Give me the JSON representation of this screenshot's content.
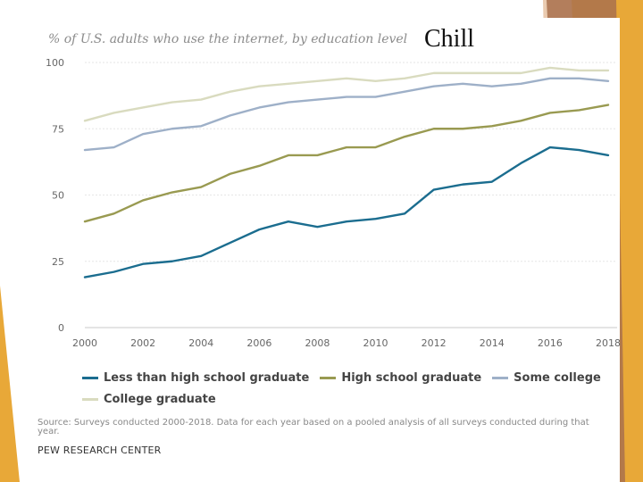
{
  "slide": {
    "subtitle": "% of U.S. adults who use the internet, by education level",
    "handwritten_note": "Chill",
    "source": "Source: Surveys conducted 2000-2018. Data for each year based on a pooled analysis of all surveys conducted during that year.",
    "credit": "PEW RESEARCH CENTER",
    "accent_colors": {
      "gold": "#e8a838",
      "brown": "#a9714e"
    }
  },
  "chart_data": {
    "type": "line",
    "title": "",
    "subtitle": "% of U.S. adults who use the internet, by education level",
    "xlabel": "",
    "ylabel": "",
    "x": [
      2000,
      2001,
      2002,
      2003,
      2004,
      2005,
      2006,
      2007,
      2008,
      2009,
      2010,
      2011,
      2012,
      2013,
      2014,
      2015,
      2016,
      2017,
      2018
    ],
    "xticks": [
      "2000",
      "2002",
      "2004",
      "2006",
      "2008",
      "2010",
      "2012",
      "2014",
      "2016",
      "2018"
    ],
    "yticks": [
      "0",
      "25",
      "50",
      "75",
      "100"
    ],
    "ylim": [
      0,
      100
    ],
    "grid": true,
    "legend": "bottom",
    "series": [
      {
        "name": "Less than high school graduate",
        "color": "#1b6d8f",
        "values": [
          19,
          21,
          24,
          25,
          27,
          32,
          37,
          40,
          38,
          40,
          41,
          43,
          52,
          54,
          55,
          62,
          68,
          67,
          65
        ]
      },
      {
        "name": "High school graduate",
        "color": "#999a51",
        "values": [
          40,
          43,
          48,
          51,
          53,
          58,
          61,
          65,
          65,
          68,
          68,
          72,
          75,
          75,
          76,
          78,
          81,
          82,
          84
        ]
      },
      {
        "name": "Some college",
        "color": "#9eb0c8",
        "values": [
          67,
          68,
          73,
          75,
          76,
          80,
          83,
          85,
          86,
          87,
          87,
          89,
          91,
          92,
          91,
          92,
          94,
          94,
          93
        ]
      },
      {
        "name": "College graduate",
        "color": "#d9dbbf",
        "values": [
          78,
          81,
          83,
          85,
          86,
          89,
          91,
          92,
          93,
          94,
          93,
          94,
          96,
          96,
          96,
          96,
          98,
          97,
          97
        ]
      }
    ]
  }
}
